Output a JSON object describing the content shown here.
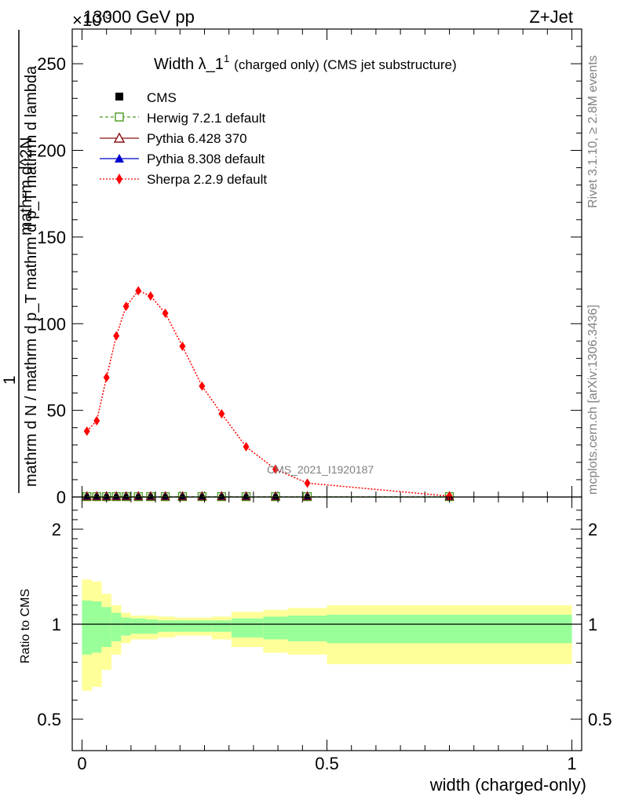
{
  "header": {
    "left": "13000 GeV pp",
    "right": "Z+Jet",
    "y_multiplier": "×10",
    "y_multiplier_exp": "-3"
  },
  "plot_title": {
    "main": "Width λ_1",
    "sup": "1",
    "suffix": "(charged only) (CMS jet substructure)"
  },
  "side_labels": {
    "rivet": "Rivet 3.1.10, ≥ 2.8M events",
    "mcplots": "mcplots.cern.ch [arXiv:1306.3436]"
  },
  "watermark": "CMS_2021_I1920187",
  "colors": {
    "herwig": "#4a9a1e",
    "pythia6": "#8b1010",
    "pythia8": "#0000cc",
    "sherpa": "#ff0000",
    "band_outer": "#ffff99",
    "band_inner": "#99ff99"
  },
  "chart_data": [
    {
      "type": "line",
      "ylabel_num": "1",
      "ylabel_den": "mathrm d N / mathrm d p_T mathrm d p_T mathrm d lambda",
      "ylabel_main": "mathrm d^2N",
      "ylim": [
        0,
        270
      ],
      "yticks": [
        0,
        50,
        100,
        150,
        200,
        250
      ],
      "xlim": [
        -0.02,
        1.02
      ],
      "legend": [
        "CMS",
        "Herwig 7.2.1 default",
        "Pythia 6.428 370",
        "Pythia 8.308 default",
        "Sherpa 2.2.9 default"
      ],
      "legend_position": "top-left",
      "series": [
        {
          "name": "Sherpa 2.2.9 default",
          "x": [
            0.01,
            0.03,
            0.05,
            0.07,
            0.09,
            0.115,
            0.14,
            0.17,
            0.205,
            0.245,
            0.285,
            0.335,
            0.395,
            0.46,
            0.75
          ],
          "values": [
            38,
            44,
            69,
            93,
            110,
            119,
            116,
            106,
            87,
            64,
            48,
            29,
            16,
            8,
            0.5
          ]
        },
        {
          "name": "CMS",
          "x": [
            0.01,
            0.03,
            0.05,
            0.07,
            0.09,
            0.115,
            0.14,
            0.17,
            0.205,
            0.245,
            0.285,
            0.335,
            0.395,
            0.46,
            0.75
          ],
          "values": [
            0.2,
            0.2,
            0.2,
            0.2,
            0.2,
            0.2,
            0.2,
            0.2,
            0.2,
            0.2,
            0.2,
            0.2,
            0.2,
            0.2,
            0.2
          ]
        }
      ]
    },
    {
      "type": "area",
      "ylabel": "Ratio to CMS",
      "xlabel": "width (charged-only)",
      "ylim": [
        0.4,
        2.3
      ],
      "yticks": [
        0.5,
        1,
        2
      ],
      "ytick_labels": [
        "0.5",
        "1",
        "2"
      ],
      "xticks": [
        0,
        0.5,
        1
      ],
      "xtick_labels": [
        "0",
        "0.5",
        "1"
      ],
      "bins": [
        {
          "lo": 0.0,
          "hi": 0.02,
          "inner": [
            0.84,
            1.25
          ],
          "outer": [
            0.65,
            1.47
          ]
        },
        {
          "lo": 0.02,
          "hi": 0.04,
          "inner": [
            0.85,
            1.24
          ],
          "outer": [
            0.67,
            1.45
          ]
        },
        {
          "lo": 0.04,
          "hi": 0.06,
          "inner": [
            0.88,
            1.18
          ],
          "outer": [
            0.76,
            1.32
          ]
        },
        {
          "lo": 0.06,
          "hi": 0.08,
          "inner": [
            0.91,
            1.12
          ],
          "outer": [
            0.84,
            1.2
          ]
        },
        {
          "lo": 0.08,
          "hi": 0.1,
          "inner": [
            0.94,
            1.07
          ],
          "outer": [
            0.9,
            1.12
          ]
        },
        {
          "lo": 0.1,
          "hi": 0.13,
          "inner": [
            0.95,
            1.06
          ],
          "outer": [
            0.92,
            1.09
          ]
        },
        {
          "lo": 0.13,
          "hi": 0.155,
          "inner": [
            0.95,
            1.05
          ],
          "outer": [
            0.92,
            1.09
          ]
        },
        {
          "lo": 0.155,
          "hi": 0.19,
          "inner": [
            0.96,
            1.04
          ],
          "outer": [
            0.93,
            1.08
          ]
        },
        {
          "lo": 0.19,
          "hi": 0.225,
          "inner": [
            0.96,
            1.04
          ],
          "outer": [
            0.94,
            1.07
          ]
        },
        {
          "lo": 0.225,
          "hi": 0.265,
          "inner": [
            0.96,
            1.04
          ],
          "outer": [
            0.94,
            1.07
          ]
        },
        {
          "lo": 0.265,
          "hi": 0.305,
          "inner": [
            0.96,
            1.04
          ],
          "outer": [
            0.92,
            1.08
          ]
        },
        {
          "lo": 0.305,
          "hi": 0.37,
          "inner": [
            0.93,
            1.06
          ],
          "outer": [
            0.88,
            1.13
          ]
        },
        {
          "lo": 0.37,
          "hi": 0.42,
          "inner": [
            0.92,
            1.08
          ],
          "outer": [
            0.85,
            1.15
          ]
        },
        {
          "lo": 0.42,
          "hi": 0.5,
          "inner": [
            0.91,
            1.09
          ],
          "outer": [
            0.84,
            1.17
          ]
        },
        {
          "lo": 0.5,
          "hi": 1.0,
          "inner": [
            0.9,
            1.1
          ],
          "outer": [
            0.79,
            1.2
          ]
        }
      ],
      "reference": 1
    }
  ]
}
